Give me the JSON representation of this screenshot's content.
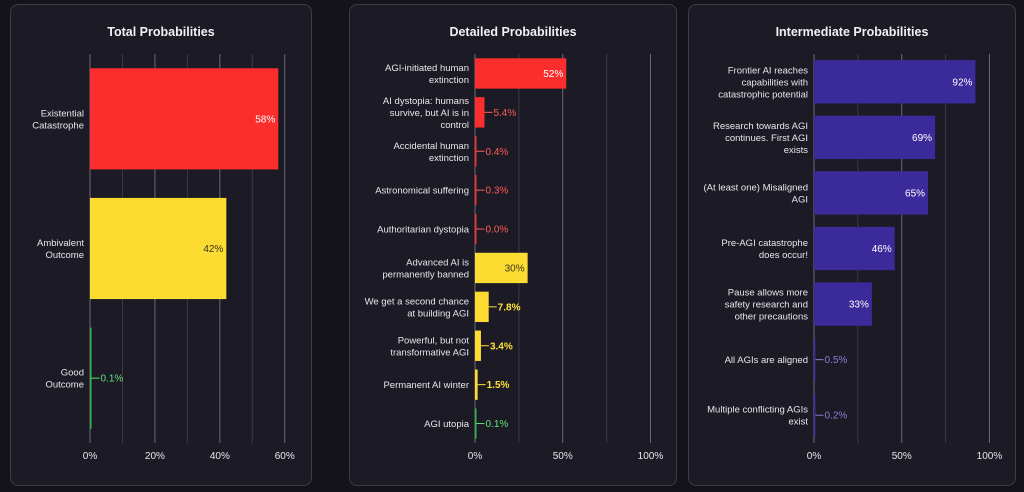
{
  "chart_data": [
    {
      "type": "bar",
      "orientation": "horizontal",
      "title": "Total Probabilities",
      "categories": [
        [
          "Existential",
          "Catastrophe"
        ],
        [
          "Ambivalent",
          "Outcome"
        ],
        [
          "Good",
          "Outcome"
        ]
      ],
      "values": [
        58,
        42,
        0.1
      ],
      "value_labels": [
        "58%",
        "42%",
        "0.1%"
      ],
      "colors": [
        "#fb2d2d",
        "#fcdc31",
        "#2fb84b"
      ],
      "label_colors": [
        "#ffffff",
        "#3a3320",
        "#5fe37a"
      ],
      "xlim": [
        0,
        65
      ],
      "xticks": [
        0,
        20,
        40,
        60
      ],
      "xtick_labels": [
        "0%",
        "20%",
        "40%",
        "60%"
      ],
      "grid": true
    },
    {
      "type": "bar",
      "orientation": "horizontal",
      "title": "Detailed Probabilities",
      "categories": [
        [
          "AGI-initiated human",
          "extinction"
        ],
        [
          "AI dystopia: humans",
          "survive, but AI is in",
          "control"
        ],
        [
          "Accidental human",
          "extinction"
        ],
        [
          "Astronomical suffering"
        ],
        [
          "Authoritarian dystopia"
        ],
        [
          "Advanced AI is",
          "permanently banned"
        ],
        [
          "We get a second chance",
          "at building AGI"
        ],
        [
          "Powerful, but not",
          "transformative AGI"
        ],
        [
          "Permanent AI winter"
        ],
        [
          "AGI utopia"
        ]
      ],
      "values": [
        52,
        5.4,
        0.4,
        0.3,
        0.0,
        30,
        7.8,
        3.4,
        1.5,
        0.1
      ],
      "value_labels": [
        "52%",
        "5.4%",
        "0.4%",
        "0.3%",
        "0.0%",
        "30%",
        "7.8%",
        "3.4%",
        "1.5%",
        "0.1%"
      ],
      "colors": [
        "#fb2d2d",
        "#fb2d2d",
        "#fb2d2d",
        "#fb2d2d",
        "#fb2d2d",
        "#fcdc31",
        "#fcdc31",
        "#fcdc31",
        "#fcdc31",
        "#2fb84b"
      ],
      "label_colors": [
        "#ffffff",
        "#ff5a5a",
        "#ff5a5a",
        "#ff5a5a",
        "#ff5a5a",
        "#3a3320",
        "#ffe234",
        "#ffe234",
        "#ffe234",
        "#5fe37a"
      ],
      "xlim": [
        0,
        110
      ],
      "xticks": [
        0,
        50,
        100
      ],
      "xtick_labels": [
        "0%",
        "50%",
        "100%"
      ],
      "grid": true
    },
    {
      "type": "bar",
      "orientation": "horizontal",
      "title": "Intermediate Probabilities",
      "categories": [
        [
          "Frontier AI reaches",
          "capabilities with",
          "catastrophic potential"
        ],
        [
          "Research towards AGI",
          "continues. First AGI",
          "exists"
        ],
        [
          "(At least one) Misaligned",
          "AGI"
        ],
        [
          "Pre-AGI catastrophe",
          "does occur!"
        ],
        [
          "Pause allows more",
          "safety research and",
          "other precautions"
        ],
        [
          "All AGIs are aligned"
        ],
        [
          "Multiple conflicting AGIs",
          "exist"
        ]
      ],
      "values": [
        92,
        69,
        65,
        46,
        33,
        0.5,
        0.2
      ],
      "value_labels": [
        "92%",
        "69%",
        "65%",
        "46%",
        "33%",
        "0.5%",
        "0.2%"
      ],
      "colors": [
        "#3b2a9a",
        "#3b2a9a",
        "#3b2a9a",
        "#3b2a9a",
        "#3b2a9a",
        "#3b2a9a",
        "#3b2a9a"
      ],
      "label_colors": [
        "#ffffff",
        "#ffffff",
        "#ffffff",
        "#ffffff",
        "#ffffff",
        "#8a7cd6",
        "#8a7cd6"
      ],
      "xlim": [
        0,
        110
      ],
      "xticks": [
        0,
        50,
        100
      ],
      "xtick_labels": [
        "0%",
        "50%",
        "100%"
      ],
      "grid": true
    }
  ]
}
